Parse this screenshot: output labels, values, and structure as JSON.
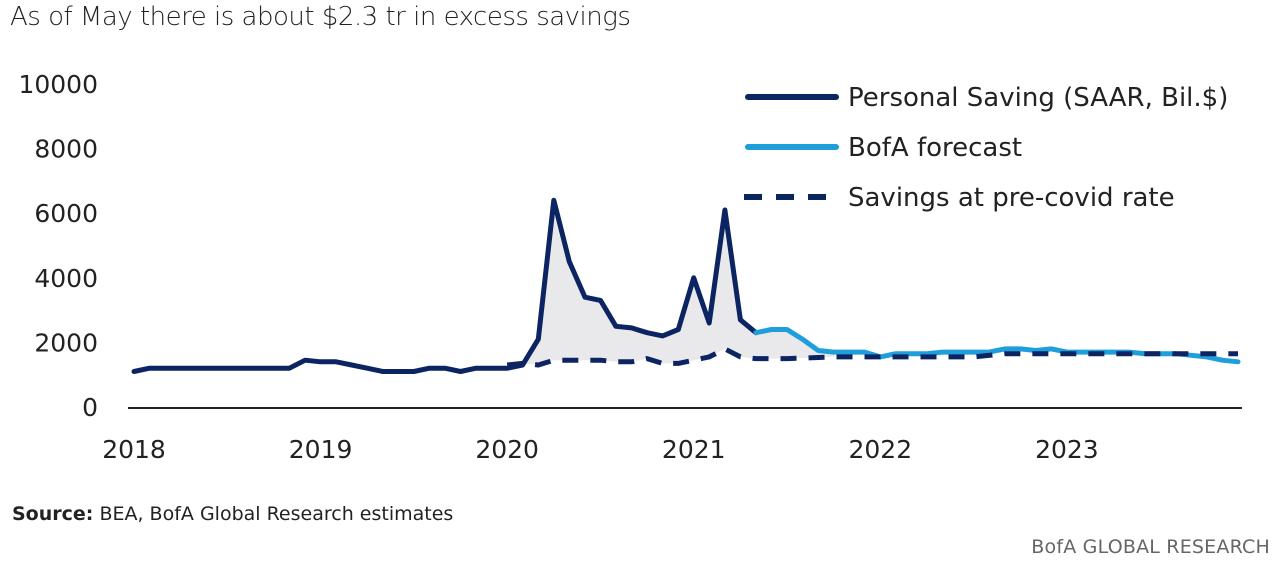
{
  "chart_data": {
    "type": "line",
    "title": "As of May there is about $2.3 tr in excess savings",
    "xlabel": "",
    "ylabel": "",
    "ylim": [
      0,
      10000
    ],
    "yticks": [
      "10000",
      "8000",
      "6000",
      "4000",
      "2000",
      "0"
    ],
    "xticks": [
      "2018",
      "2019",
      "2020",
      "2021",
      "2022",
      "2023"
    ],
    "xlim": [
      2018.0,
      2023.917
    ],
    "legend_position": "top-right",
    "shade_between": [
      "Personal Saving (SAAR, Bil.$)",
      "Savings at pre-covid rate"
    ],
    "series": [
      {
        "name": "Personal Saving (SAAR, Bil.$)",
        "style": "solid",
        "color": "#0c2461",
        "points": [
          [
            2018.0,
            1100
          ],
          [
            2018.083,
            1200
          ],
          [
            2018.167,
            1200
          ],
          [
            2018.25,
            1200
          ],
          [
            2018.333,
            1200
          ],
          [
            2018.417,
            1200
          ],
          [
            2018.5,
            1200
          ],
          [
            2018.583,
            1200
          ],
          [
            2018.667,
            1200
          ],
          [
            2018.75,
            1200
          ],
          [
            2018.833,
            1200
          ],
          [
            2018.917,
            1450
          ],
          [
            2019.0,
            1400
          ],
          [
            2019.083,
            1400
          ],
          [
            2019.167,
            1300
          ],
          [
            2019.25,
            1200
          ],
          [
            2019.333,
            1100
          ],
          [
            2019.417,
            1100
          ],
          [
            2019.5,
            1100
          ],
          [
            2019.583,
            1200
          ],
          [
            2019.667,
            1200
          ],
          [
            2019.75,
            1100
          ],
          [
            2019.833,
            1200
          ],
          [
            2019.917,
            1200
          ],
          [
            2020.0,
            1200
          ],
          [
            2020.083,
            1300
          ],
          [
            2020.167,
            2100
          ],
          [
            2020.25,
            6400
          ],
          [
            2020.333,
            4500
          ],
          [
            2020.417,
            3400
          ],
          [
            2020.5,
            3300
          ],
          [
            2020.583,
            2500
          ],
          [
            2020.667,
            2450
          ],
          [
            2020.75,
            2300
          ],
          [
            2020.833,
            2200
          ],
          [
            2020.917,
            2400
          ],
          [
            2021.0,
            4000
          ],
          [
            2021.083,
            2600
          ],
          [
            2021.167,
            6100
          ],
          [
            2021.25,
            2700
          ],
          [
            2021.333,
            2300
          ]
        ]
      },
      {
        "name": "BofA  forecast",
        "style": "solid",
        "color": "#1e9fdb",
        "points": [
          [
            2021.333,
            2300
          ],
          [
            2021.417,
            2400
          ],
          [
            2021.5,
            2400
          ],
          [
            2021.583,
            2100
          ],
          [
            2021.667,
            1750
          ],
          [
            2021.75,
            1700
          ],
          [
            2021.833,
            1700
          ],
          [
            2021.917,
            1700
          ],
          [
            2022.0,
            1550
          ],
          [
            2022.083,
            1650
          ],
          [
            2022.167,
            1650
          ],
          [
            2022.25,
            1650
          ],
          [
            2022.333,
            1700
          ],
          [
            2022.417,
            1700
          ],
          [
            2022.5,
            1700
          ],
          [
            2022.583,
            1700
          ],
          [
            2022.667,
            1800
          ],
          [
            2022.75,
            1800
          ],
          [
            2022.833,
            1750
          ],
          [
            2022.917,
            1800
          ],
          [
            2023.0,
            1700
          ],
          [
            2023.083,
            1700
          ],
          [
            2023.167,
            1700
          ],
          [
            2023.25,
            1700
          ],
          [
            2023.333,
            1700
          ],
          [
            2023.417,
            1650
          ],
          [
            2023.5,
            1650
          ],
          [
            2023.583,
            1650
          ],
          [
            2023.667,
            1600
          ],
          [
            2023.75,
            1550
          ],
          [
            2023.833,
            1450
          ],
          [
            2023.917,
            1400
          ]
        ]
      },
      {
        "name": "Savings at pre-covid rate",
        "style": "dashed",
        "color": "#0c2461",
        "points": [
          [
            2020.0,
            1300
          ],
          [
            2020.083,
            1350
          ],
          [
            2020.167,
            1300
          ],
          [
            2020.25,
            1450
          ],
          [
            2020.333,
            1450
          ],
          [
            2020.417,
            1450
          ],
          [
            2020.5,
            1450
          ],
          [
            2020.583,
            1400
          ],
          [
            2020.667,
            1400
          ],
          [
            2020.75,
            1500
          ],
          [
            2020.833,
            1350
          ],
          [
            2020.917,
            1350
          ],
          [
            2021.0,
            1450
          ],
          [
            2021.083,
            1550
          ],
          [
            2021.167,
            1800
          ],
          [
            2021.25,
            1550
          ],
          [
            2021.333,
            1500
          ],
          [
            2021.5,
            1500
          ],
          [
            2021.75,
            1550
          ],
          [
            2022.0,
            1550
          ],
          [
            2022.25,
            1550
          ],
          [
            2022.5,
            1550
          ],
          [
            2022.667,
            1650
          ],
          [
            2022.833,
            1650
          ],
          [
            2023.0,
            1650
          ],
          [
            2023.25,
            1650
          ],
          [
            2023.5,
            1650
          ],
          [
            2023.75,
            1650
          ],
          [
            2023.917,
            1650
          ]
        ]
      }
    ]
  },
  "source": {
    "label": "Source:",
    "text": "BEA, BofA Global Research estimates"
  },
  "brand": "BofA GLOBAL RESEARCH"
}
